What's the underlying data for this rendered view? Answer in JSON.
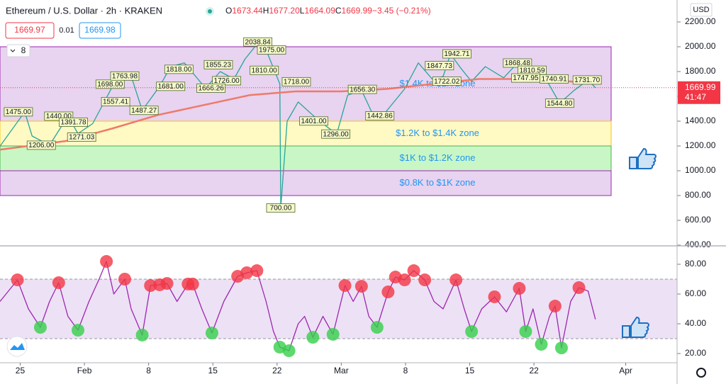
{
  "header": {
    "title": "Ethereum / U.S. Dollar · 2h · KRAKEN",
    "ohlc": [
      {
        "key": "O",
        "value": "1673.44"
      },
      {
        "key": "H",
        "value": "1677.20"
      },
      {
        "key": "L",
        "value": "1664.09"
      },
      {
        "key": "C",
        "value": "1669.99"
      }
    ],
    "change": "−3.45 (−0.21%)",
    "bid": 1669.97,
    "spread": 0.01,
    "ask": 1669.98,
    "indicator_count": 8,
    "currency": "USD"
  },
  "chart_data": [
    {
      "type": "line",
      "xlim": [
        -2.2,
        71.6
      ],
      "xticks": [
        {
          "value": 0,
          "label": "25"
        },
        {
          "value": 7,
          "label": "Feb"
        },
        {
          "value": 14,
          "label": "8"
        },
        {
          "value": 21,
          "label": "15"
        },
        {
          "value": 28,
          "label": "22"
        },
        {
          "value": 35,
          "label": "Mar"
        },
        {
          "value": 42,
          "label": "8"
        },
        {
          "value": 49,
          "label": "15"
        },
        {
          "value": 56,
          "label": "22"
        },
        {
          "value": 66,
          "label": "Apr"
        }
      ],
      "ylim": [
        400,
        2200
      ],
      "yticks": [
        {
          "value": 400,
          "label": "400.00"
        },
        {
          "value": 600,
          "label": "600.00"
        },
        {
          "value": 800,
          "label": "800.00"
        },
        {
          "value": 1000,
          "label": "1000.00"
        },
        {
          "value": 1200,
          "label": "1200.00"
        },
        {
          "value": 1400,
          "label": "1400.00"
        },
        {
          "value": 1600,
          "label": "1600.00"
        },
        {
          "value": 1800,
          "label": "1800.00"
        },
        {
          "value": 2000,
          "label": "2000.00"
        },
        {
          "value": 2200,
          "label": "2200.00"
        }
      ],
      "series": [
        {
          "color": "#26a69a",
          "x": [
            -2.2,
            0.5,
            1.3,
            3.2,
            5.2,
            6.3,
            7.9,
            10.2,
            12.1,
            13.3,
            15.2,
            16.4,
            17.9,
            20.2,
            21.8,
            23.3,
            24.5,
            26.0,
            26.8,
            28.3,
            28.4,
            29.1,
            30.3,
            32.6,
            34.5,
            35.7,
            37.2,
            38.4,
            39.5,
            41.9,
            43.4,
            44.9,
            46.1,
            46.9,
            48.0,
            49.2,
            50.7,
            52.7,
            54.2,
            55.8,
            57.3,
            58.8,
            60.4,
            61.9,
            62.7
          ],
          "values": [
            1198,
            1475,
            1280,
            1206,
            1440,
            1300,
            1380,
            1700,
            1764,
            1487,
            1681,
            1840,
            1870,
            1666,
            1800,
            1740,
            1900,
            2038,
            1975,
            1700,
            700,
            1400,
            1555,
            1401,
            1296,
            1610,
            1650,
            1460,
            1443,
            1660,
            1870,
            1740,
            1760,
            1942,
            1830,
            1720,
            1840,
            1750,
            1868,
            1810,
            1740,
            1545,
            1650,
            1731,
            1670
          ]
        },
        {
          "color": "#ef7a68",
          "x": [
            -2.2,
            5,
            10,
            15,
            20,
            25,
            30,
            35,
            40,
            45,
            50,
            55,
            60,
            62.7
          ],
          "values": [
            1170,
            1240,
            1340,
            1450,
            1530,
            1610,
            1640,
            1640,
            1660,
            1700,
            1740,
            1740,
            1720,
            1700
          ]
        }
      ],
      "zones": [
        {
          "label": "$1.4K to $2K zone",
          "range": [
            1400,
            2000
          ],
          "color": "#e8d3f0",
          "border": "#9c27b0"
        },
        {
          "label": "$1.2K to $1.4K zone",
          "range": [
            1200,
            1400
          ],
          "color": "#fff9c4",
          "border": "#f5c518"
        },
        {
          "label": "$1K to $1.2K zone",
          "range": [
            1000,
            1200
          ],
          "color": "#c8f7c5",
          "border": "#4caf50"
        },
        {
          "label": "$0.8K to $1K zone",
          "range": [
            800,
            1000
          ],
          "color": "#e8d3f0",
          "border": "#9c27b0"
        }
      ],
      "annotations": [
        {
          "x": -0.2,
          "value": 1475,
          "label": "1475.00"
        },
        {
          "x": 2.3,
          "value": 1206,
          "label": "1206.00"
        },
        {
          "x": 4.2,
          "value": 1440,
          "label": "1440.00"
        },
        {
          "x": 5.8,
          "value": 1391.78
        },
        {
          "x": 6.7,
          "value": 1271.03
        },
        {
          "x": 9.8,
          "value": 1698,
          "label": "1698.00"
        },
        {
          "x": 11.4,
          "value": 1763.98
        },
        {
          "x": 10.4,
          "value": 1557.41
        },
        {
          "x": 13.5,
          "value": 1487.27
        },
        {
          "x": 16.4,
          "value": 1681,
          "label": "1681.00"
        },
        {
          "x": 17.3,
          "value": 1818,
          "label": "1818.00"
        },
        {
          "x": 21.6,
          "value": 1855.23
        },
        {
          "x": 22.5,
          "value": 1726,
          "label": "1726.00"
        },
        {
          "x": 20.8,
          "value": 1666.26
        },
        {
          "x": 25.9,
          "value": 2038.84
        },
        {
          "x": 27.4,
          "value": 1975,
          "label": "1975.00"
        },
        {
          "x": 26.6,
          "value": 1810,
          "label": "1810.00"
        },
        {
          "x": 30.1,
          "value": 1718,
          "label": "1718.00"
        },
        {
          "x": 32.0,
          "value": 1401,
          "label": "1401.00"
        },
        {
          "x": 34.4,
          "value": 1296,
          "label": "1296.00"
        },
        {
          "x": 37.3,
          "value": 1656.3,
          "label": "1656.30"
        },
        {
          "x": 39.2,
          "value": 1442.86
        },
        {
          "x": 45.7,
          "value": 1847.73
        },
        {
          "x": 47.6,
          "value": 1942.71
        },
        {
          "x": 46.5,
          "value": 1722.02
        },
        {
          "x": 54.2,
          "value": 1868.48
        },
        {
          "x": 55.8,
          "value": 1810.59
        },
        {
          "x": 58.2,
          "value": 1740.91
        },
        {
          "x": 61.8,
          "value": 1731.7,
          "label": "1731.70"
        },
        {
          "x": 55.1,
          "value": 1747.95
        },
        {
          "x": 58.8,
          "value": 1544.8,
          "label": "1544.80"
        },
        {
          "x": 28.4,
          "value": 700,
          "label": "700.00"
        }
      ],
      "last_price": 1669.99,
      "countdown": "41:47"
    },
    {
      "type": "line",
      "xlim": [
        -2.2,
        71.6
      ],
      "ylim": [
        20,
        80
      ],
      "yticks": [
        {
          "value": 20,
          "label": "20.00"
        },
        {
          "value": 40,
          "label": "40.00"
        },
        {
          "value": 60,
          "label": "60.00"
        },
        {
          "value": 80,
          "label": "80.00"
        }
      ],
      "band": [
        30,
        70
      ],
      "series": [
        {
          "color": "#9c27b0",
          "x": [
            -2.2,
            -0.3,
            0.9,
            2.2,
            3.2,
            4.2,
            5.2,
            6.3,
            7.5,
            8.6,
            9.4,
            10.2,
            11.4,
            12.1,
            13.3,
            14.2,
            15.2,
            16.0,
            17.1,
            18.3,
            18.8,
            19.8,
            20.9,
            22.2,
            23.7,
            24.7,
            25.8,
            26.8,
            27.6,
            28.3,
            29.3,
            30.3,
            31.0,
            31.9,
            33.0,
            34.1,
            35.4,
            36.3,
            37.2,
            38.0,
            38.9,
            40.1,
            40.9,
            41.9,
            42.9,
            44.1,
            45.1,
            46.1,
            47.5,
            48.4,
            49.2,
            50.3,
            51.7,
            53.0,
            54.4,
            55.1,
            55.9,
            56.8,
            57.7,
            58.3,
            59.0,
            60.0,
            60.9,
            61.9,
            62.7
          ],
          "values": [
            55,
            69.5,
            50,
            37.6,
            55,
            67.6,
            45,
            35.7,
            55,
            70,
            81.9,
            60,
            70,
            50,
            32.4,
            65.7,
            66.2,
            67.1,
            55,
            66.7,
            66.7,
            50,
            33.8,
            55,
            71.9,
            74.3,
            75.7,
            55,
            35,
            24.3,
            21.9,
            40,
            45,
            30.9,
            45,
            32.9,
            65.7,
            55,
            65.2,
            45,
            37.6,
            61.4,
            71.4,
            69.5,
            75.7,
            69.5,
            55,
            50,
            69.5,
            50,
            34.8,
            50,
            58.1,
            48,
            63.8,
            34.8,
            50,
            26.2,
            45,
            51.9,
            23.8,
            55,
            64.3,
            62,
            43
          ]
        }
      ],
      "overbought": {
        "color": "#f23645",
        "x": [
          -0.3,
          4.2,
          9.4,
          11.4,
          14.2,
          15.2,
          16.0,
          18.3,
          18.8,
          23.7,
          24.7,
          25.8,
          35.4,
          37.2,
          40.1,
          40.9,
          41.9,
          42.9,
          44.1,
          47.5,
          51.7,
          54.4,
          58.3,
          60.9
        ],
        "values": [
          69.5,
          67.6,
          81.9,
          70,
          65.7,
          66.2,
          67.1,
          66.7,
          66.7,
          71.9,
          74.3,
          75.7,
          65.7,
          65.2,
          61.4,
          71.4,
          69.5,
          75.7,
          69.5,
          69.5,
          58.1,
          63.8,
          51.9,
          64.3
        ]
      },
      "oversold": {
        "color": "#35d04a",
        "x": [
          2.2,
          6.3,
          13.3,
          20.9,
          28.3,
          29.3,
          31.9,
          34.1,
          38.9,
          49.2,
          55.1,
          56.8,
          59.0
        ],
        "values": [
          37.6,
          35.7,
          32.4,
          33.8,
          24.3,
          21.9,
          30.9,
          32.9,
          37.6,
          34.8,
          34.8,
          26.2,
          23.8
        ]
      }
    }
  ]
}
